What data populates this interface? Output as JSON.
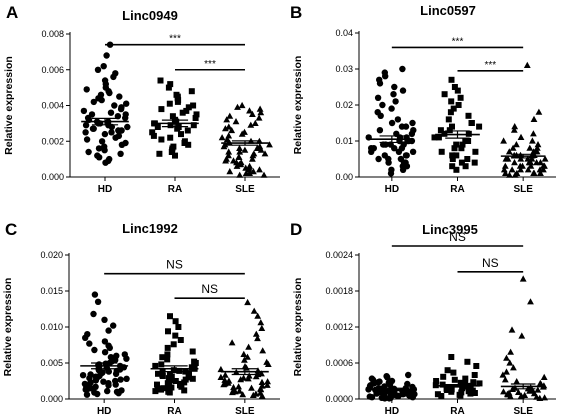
{
  "chart_data": [
    {
      "type": "scatter",
      "panel_letter": "A",
      "title": "Linc0949",
      "ylabel": "Relative expression",
      "categories": [
        "HD",
        "RA",
        "SLE"
      ],
      "ylim": [
        0,
        0.008
      ],
      "yticks": [
        "0.000",
        "0.002",
        "0.004",
        "0.006",
        "0.008"
      ],
      "markers": [
        "circle",
        "square",
        "triangle"
      ],
      "means": [
        0.0031,
        0.003,
        0.0019
      ],
      "sem": [
        0.00018,
        0.00018,
        0.00012
      ],
      "series": [
        {
          "name": "HD",
          "values": [
            0.0074,
            0.0068,
            0.0062,
            0.006,
            0.0058,
            0.0056,
            0.0054,
            0.0052,
            0.005,
            0.0049,
            0.0048,
            0.0047,
            0.0046,
            0.0045,
            0.0044,
            0.0043,
            0.0042,
            0.0041,
            0.004,
            0.0039,
            0.0038,
            0.0037,
            0.0036,
            0.0035,
            0.0035,
            0.0034,
            0.0033,
            0.0033,
            0.0032,
            0.0031,
            0.0031,
            0.003,
            0.003,
            0.0029,
            0.0029,
            0.0028,
            0.0028,
            0.0027,
            0.0027,
            0.0026,
            0.0026,
            0.0025,
            0.0025,
            0.0024,
            0.0023,
            0.0022,
            0.0021,
            0.002,
            0.0019,
            0.0018,
            0.0017,
            0.0016,
            0.0015,
            0.0014,
            0.0013,
            0.0012,
            0.0011,
            0.001,
            0.0009,
            0.0008
          ]
        },
        {
          "name": "RA",
          "values": [
            0.0054,
            0.0052,
            0.005,
            0.0048,
            0.0046,
            0.0045,
            0.0044,
            0.0043,
            0.0042,
            0.0041,
            0.004,
            0.0039,
            0.0038,
            0.0037,
            0.0036,
            0.0035,
            0.0034,
            0.0033,
            0.0032,
            0.0031,
            0.0031,
            0.003,
            0.003,
            0.0029,
            0.0029,
            0.0028,
            0.0028,
            0.0027,
            0.0026,
            0.0025,
            0.0024,
            0.0023,
            0.0022,
            0.0021,
            0.002,
            0.0019,
            0.0018,
            0.0017,
            0.0016,
            0.0015,
            0.0014,
            0.0013,
            0.0012
          ]
        },
        {
          "name": "SLE",
          "values": [
            0.004,
            0.0039,
            0.0038,
            0.0037,
            0.0036,
            0.0035,
            0.0034,
            0.0033,
            0.0032,
            0.0031,
            0.003,
            0.0029,
            0.0028,
            0.0027,
            0.0026,
            0.0025,
            0.0024,
            0.0023,
            0.0022,
            0.0021,
            0.002,
            0.002,
            0.0019,
            0.0019,
            0.0018,
            0.0018,
            0.0017,
            0.0017,
            0.0016,
            0.0016,
            0.0015,
            0.0015,
            0.0014,
            0.0014,
            0.0013,
            0.0013,
            0.0012,
            0.0012,
            0.0011,
            0.0011,
            0.001,
            0.001,
            0.0009,
            0.0009,
            0.0008,
            0.0008,
            0.0007,
            0.0007,
            0.0006,
            0.0006,
            0.0005,
            0.0005,
            0.0004,
            0.0004,
            0.0003,
            0.0003,
            0.0002,
            0.0002,
            0.0001,
            0.0001
          ]
        }
      ],
      "comparisons": [
        {
          "from": "HD",
          "to": "SLE",
          "label": "***",
          "y": 0.0074
        },
        {
          "from": "RA",
          "to": "SLE",
          "label": "***",
          "y": 0.006
        }
      ]
    },
    {
      "type": "scatter",
      "panel_letter": "B",
      "title": "Linc0597",
      "ylabel": "Relative expression",
      "categories": [
        "HD",
        "RA",
        "SLE"
      ],
      "ylim": [
        0,
        0.04
      ],
      "yticks": [
        "0.00",
        "0.01",
        "0.02",
        "0.03",
        "0.04"
      ],
      "markers": [
        "circle",
        "square",
        "triangle"
      ],
      "means": [
        0.0105,
        0.0118,
        0.0058
      ],
      "sem": [
        0.0009,
        0.001,
        0.0005
      ],
      "series": [
        {
          "name": "HD",
          "values": [
            0.03,
            0.029,
            0.028,
            0.027,
            0.026,
            0.025,
            0.024,
            0.023,
            0.022,
            0.021,
            0.02,
            0.019,
            0.018,
            0.017,
            0.016,
            0.015,
            0.015,
            0.014,
            0.014,
            0.013,
            0.013,
            0.012,
            0.012,
            0.011,
            0.011,
            0.011,
            0.01,
            0.01,
            0.01,
            0.01,
            0.009,
            0.009,
            0.009,
            0.009,
            0.008,
            0.008,
            0.008,
            0.008,
            0.007,
            0.007,
            0.007,
            0.006,
            0.006,
            0.006,
            0.005,
            0.005,
            0.005,
            0.004,
            0.004,
            0.004,
            0.003,
            0.003,
            0.002,
            0.002,
            0.001
          ]
        },
        {
          "name": "RA",
          "values": [
            0.027,
            0.025,
            0.024,
            0.023,
            0.022,
            0.021,
            0.02,
            0.019,
            0.018,
            0.017,
            0.016,
            0.015,
            0.015,
            0.014,
            0.014,
            0.013,
            0.013,
            0.012,
            0.012,
            0.011,
            0.011,
            0.01,
            0.01,
            0.009,
            0.009,
            0.008,
            0.008,
            0.007,
            0.007,
            0.006,
            0.006,
            0.005,
            0.005,
            0.004,
            0.004,
            0.003,
            0.003,
            0.002
          ]
        },
        {
          "name": "SLE",
          "values": [
            0.031,
            0.018,
            0.016,
            0.014,
            0.013,
            0.012,
            0.011,
            0.01,
            0.01,
            0.009,
            0.009,
            0.008,
            0.008,
            0.008,
            0.007,
            0.007,
            0.007,
            0.007,
            0.006,
            0.006,
            0.006,
            0.006,
            0.006,
            0.005,
            0.005,
            0.005,
            0.005,
            0.005,
            0.005,
            0.004,
            0.004,
            0.004,
            0.004,
            0.004,
            0.004,
            0.003,
            0.003,
            0.003,
            0.003,
            0.003,
            0.003,
            0.002,
            0.002,
            0.002,
            0.002,
            0.002,
            0.002,
            0.001,
            0.001,
            0.001,
            0.001,
            0.001,
            0.001,
            0.0005,
            0.0005
          ]
        }
      ],
      "comparisons": [
        {
          "from": "HD",
          "to": "SLE",
          "label": "***",
          "y": 0.036
        },
        {
          "from": "RA",
          "to": "SLE",
          "label": "***",
          "y": 0.0295
        }
      ]
    },
    {
      "type": "scatter",
      "panel_letter": "C",
      "title": "Linc1992",
      "ylabel": "Relative expression",
      "categories": [
        "HD",
        "RA",
        "SLE"
      ],
      "ylim": [
        0,
        0.02
      ],
      "yticks": [
        "0.000",
        "0.005",
        "0.010",
        "0.015",
        "0.020"
      ],
      "markers": [
        "circle",
        "square",
        "triangle"
      ],
      "means": [
        0.0046,
        0.0042,
        0.0038
      ],
      "sem": [
        0.0004,
        0.0004,
        0.0004
      ],
      "series": [
        {
          "name": "HD",
          "values": [
            0.0145,
            0.0135,
            0.0118,
            0.011,
            0.0102,
            0.0095,
            0.009,
            0.0085,
            0.008,
            0.0077,
            0.0074,
            0.0071,
            0.0068,
            0.0065,
            0.0062,
            0.006,
            0.0058,
            0.0056,
            0.0054,
            0.0052,
            0.005,
            0.0049,
            0.0048,
            0.0047,
            0.0046,
            0.0045,
            0.0044,
            0.0043,
            0.0042,
            0.0041,
            0.004,
            0.0039,
            0.0038,
            0.0037,
            0.0036,
            0.0035,
            0.0034,
            0.0033,
            0.0032,
            0.0031,
            0.003,
            0.0029,
            0.0028,
            0.0027,
            0.0026,
            0.0025,
            0.0024,
            0.0023,
            0.0022,
            0.0021,
            0.002,
            0.0019,
            0.0018,
            0.0017,
            0.0016,
            0.0015,
            0.0014,
            0.0013,
            0.0012,
            0.0011,
            0.001,
            0.0009,
            0.0008,
            0.0007,
            0.0006
          ]
        },
        {
          "name": "RA",
          "values": [
            0.0115,
            0.0108,
            0.01,
            0.0094,
            0.0088,
            0.0082,
            0.0076,
            0.0071,
            0.0066,
            0.0062,
            0.0058,
            0.0055,
            0.0052,
            0.005,
            0.0048,
            0.0046,
            0.0044,
            0.0042,
            0.004,
            0.0039,
            0.0038,
            0.0037,
            0.0036,
            0.0035,
            0.0034,
            0.0033,
            0.0032,
            0.0031,
            0.003,
            0.0029,
            0.0028,
            0.0027,
            0.0026,
            0.0025,
            0.0024,
            0.0023,
            0.0022,
            0.0021,
            0.002,
            0.0019,
            0.0018,
            0.0017,
            0.0016,
            0.0015,
            0.0014,
            0.0013,
            0.0012,
            0.0011,
            0.001,
            0.0009
          ]
        },
        {
          "name": "SLE",
          "values": [
            0.0134,
            0.0122,
            0.0115,
            0.0106,
            0.0098,
            0.009,
            0.0084,
            0.0078,
            0.0072,
            0.0067,
            0.0062,
            0.0058,
            0.0054,
            0.0051,
            0.0048,
            0.0045,
            0.0043,
            0.0041,
            0.0039,
            0.0037,
            0.0035,
            0.0034,
            0.0033,
            0.0032,
            0.0031,
            0.003,
            0.0029,
            0.0028,
            0.0027,
            0.0026,
            0.0025,
            0.0024,
            0.0023,
            0.0022,
            0.0021,
            0.002,
            0.0019,
            0.0018,
            0.0017,
            0.0016,
            0.0015,
            0.0014,
            0.0013,
            0.0012,
            0.0011,
            0.001,
            0.0009,
            0.0008,
            0.0007,
            0.0006,
            0.0005,
            0.0004
          ]
        }
      ],
      "comparisons": [
        {
          "from": "HD",
          "to": "SLE",
          "label": "NS",
          "y": 0.0174
        },
        {
          "from": "RA",
          "to": "SLE",
          "label": "NS",
          "y": 0.014
        }
      ]
    },
    {
      "type": "scatter",
      "panel_letter": "D",
      "title": "Linc3995",
      "ylabel": "Relative expression",
      "categories": [
        "HD",
        "RA",
        "SLE"
      ],
      "ylim": [
        0,
        0.0024
      ],
      "yticks": [
        "0.0000",
        "0.0006",
        "0.0012",
        "0.0018",
        "0.0024"
      ],
      "markers": [
        "circle",
        "square",
        "triangle"
      ],
      "means": [
        0.00016,
        0.00022,
        0.00021
      ],
      "sem": [
        2e-05,
        2e-05,
        4e-05
      ],
      "series": [
        {
          "name": "HD",
          "values": [
            0.0004,
            0.00038,
            0.00036,
            0.00034,
            0.00032,
            0.0003,
            0.00029,
            0.00028,
            0.00027,
            0.00026,
            0.00025,
            0.00024,
            0.00023,
            0.00022,
            0.00021,
            0.0002,
            0.00019,
            0.00018,
            0.00018,
            0.00017,
            0.00017,
            0.00016,
            0.00016,
            0.00015,
            0.00015,
            0.00014,
            0.00014,
            0.00013,
            0.00013,
            0.00012,
            0.00012,
            0.00011,
            0.00011,
            0.0001,
            0.0001,
            9e-05,
            9e-05,
            8e-05,
            8e-05,
            7e-05,
            7e-05,
            6e-05,
            6e-05,
            5e-05,
            5e-05,
            4e-05,
            4e-05,
            3e-05,
            3e-05,
            2e-05,
            2e-05,
            1e-05,
            1e-05
          ]
        },
        {
          "name": "RA",
          "values": [
            0.0007,
            0.00062,
            0.00055,
            0.00048,
            0.00044,
            0.0004,
            0.00037,
            0.00034,
            0.00032,
            0.0003,
            0.00028,
            0.00027,
            0.00026,
            0.00025,
            0.00024,
            0.00023,
            0.00022,
            0.00021,
            0.0002,
            0.00019,
            0.00018,
            0.00017,
            0.00016,
            0.00015,
            0.00014,
            0.00013,
            0.00012,
            0.00011,
            0.0001,
            9e-05,
            8e-05,
            7e-05,
            6e-05,
            5e-05
          ]
        },
        {
          "name": "SLE",
          "values": [
            0.002,
            0.00162,
            0.00115,
            0.00105,
            0.00078,
            0.00068,
            0.0006,
            0.00052,
            0.00045,
            0.0004,
            0.00036,
            0.00032,
            0.00029,
            0.00026,
            0.00024,
            0.00022,
            0.0002,
            0.00019,
            0.00018,
            0.00017,
            0.00016,
            0.00015,
            0.00014,
            0.00013,
            0.00012,
            0.00011,
            0.0001,
            9e-05,
            8e-05,
            7e-05,
            6e-05,
            5e-05,
            4e-05,
            3e-05,
            2e-05,
            1e-05
          ]
        }
      ],
      "comparisons": [
        {
          "from": "HD",
          "to": "SLE",
          "label": "NS",
          "y": 0.00255
        },
        {
          "from": "RA",
          "to": "SLE",
          "label": "NS",
          "y": 0.00212
        }
      ]
    }
  ]
}
